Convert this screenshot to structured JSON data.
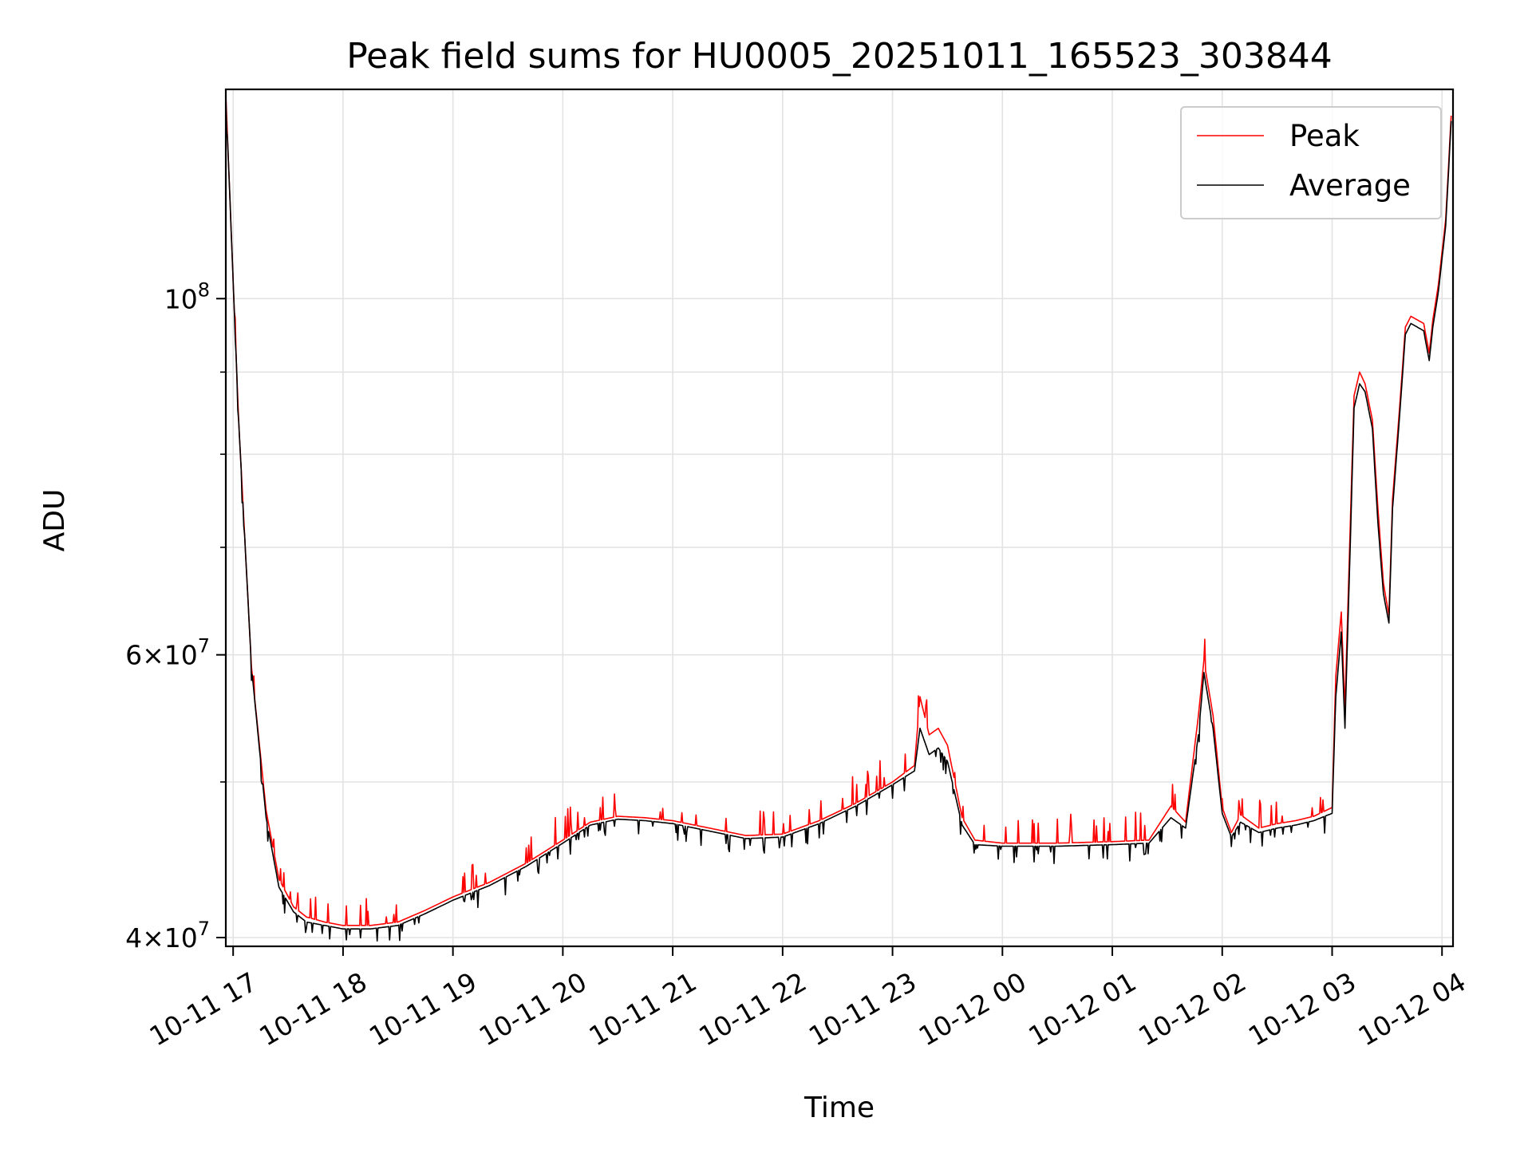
{
  "chart_data": {
    "type": "line",
    "title": "Peak field sums for HU0005_20251011_165523_303844",
    "xlabel": "Time",
    "ylabel": "ADU",
    "yscale": "log",
    "grid": true,
    "legend_position": "top-right",
    "xlim": [
      "10-11 16:56",
      "10-12 04:06"
    ],
    "ylim": [
      39500000,
      135000000
    ],
    "x_ticks": [
      "10-11 17",
      "10-11 18",
      "10-11 19",
      "10-11 20",
      "10-11 21",
      "10-11 22",
      "10-11 23",
      "10-12 00",
      "10-12 01",
      "10-12 02",
      "10-12 03",
      "10-12 04"
    ],
    "y_ticks": [
      {
        "value": 40000000,
        "mantissa": "4",
        "exponent": "7"
      },
      {
        "value": 60000000,
        "mantissa": "6",
        "exponent": "7"
      },
      {
        "value": 100000000,
        "mantissa": "",
        "exponent": "8"
      }
    ],
    "x": [
      "10-11 16:56",
      "10-11 17:03",
      "10-11 17:10",
      "10-11 17:18",
      "10-11 17:25",
      "10-11 17:33",
      "10-11 17:40",
      "10-11 17:50",
      "10-11 18:00",
      "10-11 18:15",
      "10-11 18:30",
      "10-11 18:45",
      "10-11 19:00",
      "10-11 19:20",
      "10-11 19:40",
      "10-11 20:00",
      "10-11 20:15",
      "10-11 20:30",
      "10-11 20:45",
      "10-11 21:00",
      "10-11 21:20",
      "10-11 21:40",
      "10-11 22:00",
      "10-11 22:20",
      "10-11 22:40",
      "10-11 23:00",
      "10-11 23:12",
      "10-11 23:15",
      "10-11 23:20",
      "10-11 23:25",
      "10-11 23:30",
      "10-11 23:38",
      "10-11 23:45",
      "10-12 00:00",
      "10-12 00:30",
      "10-12 01:00",
      "10-12 01:20",
      "10-12 01:32",
      "10-12 01:40",
      "10-12 01:47",
      "10-12 01:50",
      "10-12 01:55",
      "10-12 02:00",
      "10-12 02:05",
      "10-12 02:10",
      "10-12 02:20",
      "10-12 02:30",
      "10-12 02:40",
      "10-12 02:50",
      "10-12 03:00",
      "10-12 03:02",
      "10-12 03:05",
      "10-12 03:07",
      "10-12 03:10",
      "10-12 03:12",
      "10-12 03:15",
      "10-12 03:18",
      "10-12 03:22",
      "10-12 03:25",
      "10-12 03:28",
      "10-12 03:31",
      "10-12 03:33",
      "10-12 03:37",
      "10-12 03:40",
      "10-12 03:43",
      "10-12 03:50",
      "10-12 03:53",
      "10-12 03:55",
      "10-12 03:58",
      "10-12 04:02",
      "10-12 04:05"
    ],
    "series": [
      {
        "name": "Peak",
        "color": "#ff0000",
        "values": [
          134000000,
          84000000,
          59000000,
          48000000,
          43500000,
          41800000,
          41200000,
          40900000,
          40700000,
          40700000,
          40900000,
          41600000,
          42400000,
          43300000,
          44500000,
          46000000,
          47200000,
          47600000,
          47500000,
          47300000,
          46800000,
          46300000,
          46400000,
          47300000,
          48500000,
          50000000,
          51200000,
          56500000,
          53500000,
          54000000,
          52700000,
          47500000,
          46000000,
          45800000,
          45800000,
          45900000,
          46000000,
          48300000,
          47200000,
          55000000,
          59500000,
          55000000,
          48200000,
          46500000,
          47700000,
          46800000,
          47100000,
          47300000,
          47600000,
          48200000,
          58200000,
          63800000,
          55500000,
          73000000,
          87000000,
          90000000,
          88500000,
          84000000,
          74000000,
          66500000,
          63500000,
          75000000,
          86000000,
          96000000,
          97500000,
          96500000,
          92500000,
          97000000,
          102000000,
          112000000,
          130000000
        ]
      },
      {
        "name": "Average",
        "color": "#000000",
        "values": [
          134000000,
          84000000,
          59000000,
          47500000,
          43000000,
          41500000,
          40900000,
          40700000,
          40500000,
          40500000,
          40700000,
          41400000,
          42200000,
          43100000,
          44300000,
          45800000,
          47000000,
          47400000,
          47300000,
          47100000,
          46600000,
          46100000,
          46200000,
          47100000,
          48300000,
          49800000,
          50800000,
          54000000,
          52000000,
          52500000,
          51500000,
          47000000,
          45700000,
          45600000,
          45600000,
          45700000,
          45800000,
          47500000,
          46800000,
          53500000,
          58500000,
          54000000,
          47800000,
          46200000,
          47200000,
          46500000,
          46800000,
          47000000,
          47300000,
          47800000,
          56500000,
          62000000,
          54000000,
          71000000,
          85500000,
          88500000,
          87500000,
          83000000,
          72500000,
          65500000,
          62800000,
          74000000,
          85000000,
          95000000,
          96500000,
          95500000,
          91500000,
          96000000,
          101000000,
          111000000,
          129000000
        ]
      }
    ]
  }
}
